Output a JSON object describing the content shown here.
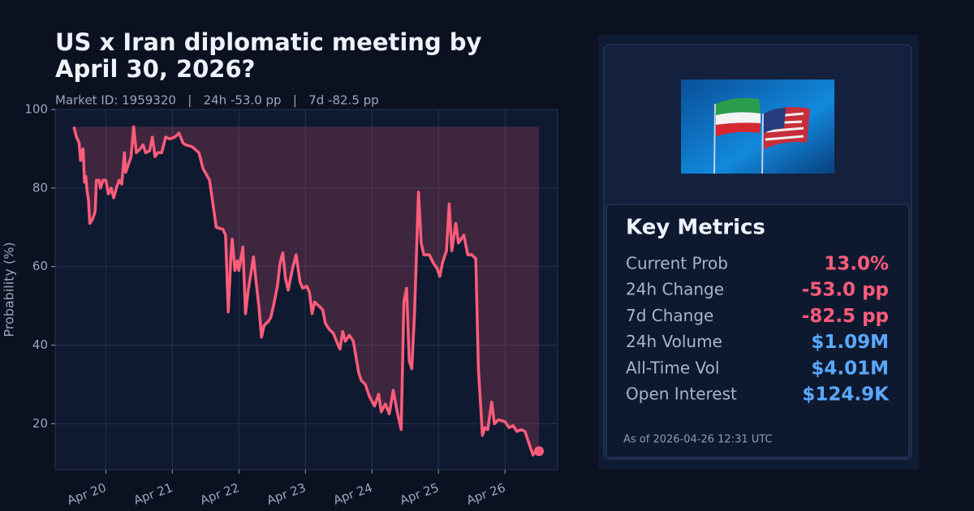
{
  "chart_data": {
    "type": "line",
    "title": "US x Iran diplomatic meeting by April 30, 2026?",
    "subtitle": "Market ID: 1959320   |   24h -53.0 pp   |   7d -82.5 pp",
    "ylabel": "Probability (%)",
    "xlim": [
      19.24,
      26.79
    ],
    "xticks": [
      {
        "value": 20,
        "label": "Apr 20"
      },
      {
        "value": 21,
        "label": "Apr 21"
      },
      {
        "value": 22,
        "label": "Apr 22"
      },
      {
        "value": 23,
        "label": "Apr 23"
      },
      {
        "value": 24,
        "label": "Apr 24"
      },
      {
        "value": 25,
        "label": "Apr 25"
      },
      {
        "value": 26,
        "label": "Apr 26"
      }
    ],
    "ylim": [
      8.3,
      100
    ],
    "yticks": [
      20,
      40,
      60,
      80,
      100
    ],
    "grid": true,
    "x": [
      19.52,
      19.56,
      19.6,
      19.62,
      19.64,
      19.66,
      19.68,
      19.7,
      19.72,
      19.74,
      19.76,
      19.8,
      19.84,
      19.86,
      19.9,
      19.92,
      19.96,
      20.0,
      20.04,
      20.08,
      20.12,
      20.16,
      20.2,
      20.24,
      20.28,
      20.3,
      20.34,
      20.38,
      20.42,
      20.46,
      20.52,
      20.56,
      20.6,
      20.66,
      20.7,
      20.74,
      20.78,
      20.84,
      20.9,
      20.96,
      21.04,
      21.1,
      21.16,
      21.2,
      21.3,
      21.4,
      21.46,
      21.56,
      21.66,
      21.76,
      21.8,
      21.84,
      21.88,
      21.9,
      21.94,
      21.98,
      22.0,
      22.04,
      22.06,
      22.1,
      22.14,
      22.18,
      22.22,
      22.26,
      22.3,
      22.34,
      22.38,
      22.44,
      22.48,
      22.52,
      22.58,
      22.62,
      22.66,
      22.7,
      22.74,
      22.8,
      22.86,
      22.92,
      22.96,
      23.02,
      23.06,
      23.1,
      23.14,
      23.2,
      23.26,
      23.3,
      23.36,
      23.42,
      23.48,
      23.52,
      23.56,
      23.6,
      23.66,
      23.72,
      23.76,
      23.8,
      23.84,
      23.9,
      23.96,
      24.04,
      24.1,
      24.14,
      24.2,
      24.26,
      24.32,
      24.38,
      24.44,
      24.48,
      24.52,
      24.56,
      24.6,
      24.64,
      24.7,
      24.74,
      24.78,
      24.86,
      24.92,
      24.98,
      25.02,
      25.06,
      25.12,
      25.16,
      25.2,
      25.26,
      25.3,
      25.38,
      25.44,
      25.5,
      25.56,
      25.6,
      25.66,
      25.7,
      25.74,
      25.8,
      25.84,
      25.9,
      26.0,
      26.06,
      26.12,
      26.18,
      26.24,
      26.3,
      26.36,
      26.42,
      26.46,
      26.51
    ],
    "series": [
      {
        "name": "Probability",
        "color": "#ff5c7a",
        "fill": "rgba(255,92,122,0.2)",
        "values": [
          95.6,
          93,
          91.5,
          87,
          89,
          90,
          81.5,
          83,
          79,
          77,
          71,
          72,
          74,
          82,
          82,
          80,
          82,
          82,
          78.5,
          80,
          77.5,
          80,
          82,
          81,
          89,
          84,
          86,
          88,
          95.6,
          89,
          90,
          91,
          89,
          89.5,
          93,
          88,
          89,
          89,
          93,
          92.5,
          93,
          94,
          91.5,
          91,
          90.5,
          89,
          85,
          82,
          70,
          69.5,
          68,
          48.5,
          62,
          67,
          59,
          61.5,
          59,
          63,
          65,
          48,
          54,
          58,
          62.5,
          56,
          50,
          42,
          45,
          46,
          47,
          50,
          55,
          61,
          63.5,
          57,
          54,
          59,
          63,
          56,
          54.5,
          55,
          53.5,
          48,
          51,
          50,
          49,
          45.5,
          44,
          43,
          40.5,
          39,
          43.5,
          41,
          42.5,
          41,
          37,
          33,
          31,
          30,
          27,
          24.5,
          27.5,
          23,
          25,
          22.5,
          28.5,
          23,
          18.5,
          51,
          54.5,
          36,
          34,
          48,
          79,
          66,
          63,
          63,
          61,
          59.5,
          57.5,
          61,
          64,
          76,
          64,
          71,
          66,
          68,
          63,
          63,
          62,
          34,
          17,
          19,
          18.5,
          25.5,
          20,
          21,
          20.5,
          19,
          19.5,
          18,
          18.5,
          18,
          15,
          12,
          13,
          13
        ]
      }
    ]
  },
  "panel": {
    "heading": "Key Metrics",
    "metrics": [
      {
        "label": "Current Prob",
        "value": "13.0%",
        "color": "#ff5c7a"
      },
      {
        "label": "24h Change",
        "value": "-53.0 pp",
        "color": "#ff5c7a"
      },
      {
        "label": "7d Change",
        "value": "-82.5 pp",
        "color": "#ff5c7a"
      },
      {
        "label": "24h Volume",
        "value": "$1.09M",
        "color": "#5aa9ff"
      },
      {
        "label": "All-Time Vol",
        "value": "$4.01M",
        "color": "#5aa9ff"
      },
      {
        "label": "Open Interest",
        "value": "$124.9K",
        "color": "#5aa9ff"
      }
    ],
    "footnote": "As of 2026-04-26 12:31 UTC"
  }
}
